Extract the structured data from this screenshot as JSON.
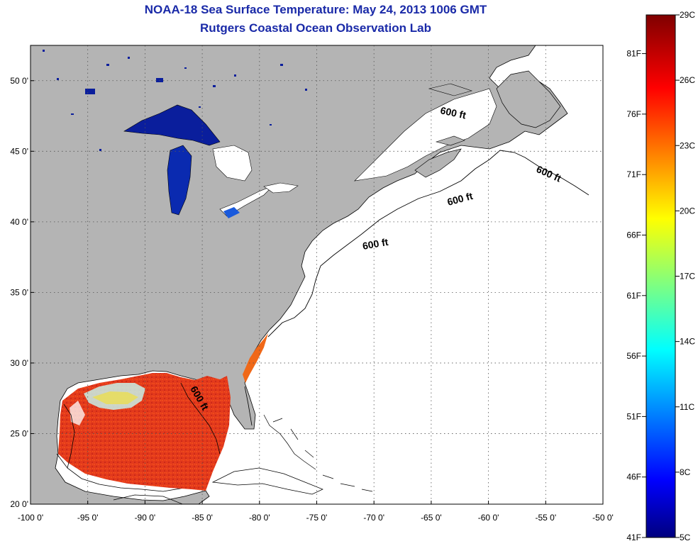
{
  "header": {
    "title": "NOAA-18 Sea Surface Temperature:  May 24, 2013 1006 GMT",
    "subtitle": "Rutgers Coastal Ocean Observation Lab"
  },
  "map": {
    "lon_range": [
      -100,
      -50
    ],
    "lat_range": [
      20,
      52.5
    ],
    "grid": true,
    "lon_ticks": [
      "-100 0'",
      "-95 0'",
      "-90 0'",
      "-85 0'",
      "-80 0'",
      "-75 0'",
      "-70 0'",
      "-65 0'",
      "-60 0'",
      "-55 0'",
      "-50 0'"
    ],
    "lon_values": [
      -100,
      -95,
      -90,
      -85,
      -80,
      -75,
      -70,
      -65,
      -60,
      -55,
      -50
    ],
    "lat_ticks": [
      "20 0'",
      "25 0'",
      "30 0'",
      "35 0'",
      "40 0'",
      "45 0'",
      "50 0'"
    ],
    "lat_values": [
      20,
      25,
      30,
      35,
      40,
      45,
      50
    ],
    "depth_labels": [
      "600 ft",
      "600 ft",
      "600 ft",
      "600 ft",
      "600 ft"
    ],
    "land_color": "#b4b4b4",
    "ocean_color": "#ffffff"
  },
  "colorbar": {
    "celsius_labels": [
      "29C",
      "26C",
      "23C",
      "20C",
      "17C",
      "14C",
      "11C",
      "8C",
      "5C"
    ],
    "celsius_values": [
      29,
      26,
      23,
      20,
      17,
      14,
      11,
      8,
      5
    ],
    "fahrenheit_labels": [
      "81F",
      "76F",
      "71F",
      "66F",
      "61F",
      "56F",
      "51F",
      "46F",
      "41F"
    ],
    "fahrenheit_values": [
      81,
      76,
      71,
      66,
      61,
      56,
      51,
      46,
      41
    ],
    "colormap": "jet",
    "range_c": [
      5,
      29
    ]
  }
}
